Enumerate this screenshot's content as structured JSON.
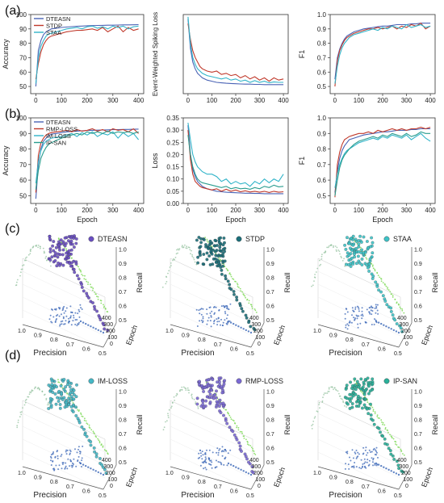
{
  "panel_labels": [
    "(a)",
    "(b)",
    "(c)",
    "(d)"
  ],
  "colors": {
    "DTEASN": "#4a63b5",
    "STDP": "#c0392b",
    "STAA": "#31b4c9",
    "RMP-LOSS": "#c0392b",
    "IM-LOSS": "#31b4c9",
    "IP-SAN": "#2a9d8f",
    "projection": "#7ed957",
    "scatter_DTEASN": "#6a4fc2",
    "scatter_STDP": "#1c6f7a",
    "scatter_STAA": "#3ec3c7",
    "scatter_IM-LOSS": "#45b8c6",
    "scatter_RMP-LOSS": "#7b6ad4",
    "scatter_IP-SAN": "#2ab09a",
    "scatter_floor": "#3a66b7",
    "scatter_wall": "#8fbf9a"
  },
  "chart_data": [
    {
      "id": "a1",
      "type": "line",
      "xlabel": "",
      "ylabel": "Accuracy",
      "xlim": [
        -20,
        420
      ],
      "ylim": [
        45,
        100
      ],
      "xticks": [
        "0",
        "100",
        "200",
        "300",
        "400"
      ],
      "yticks": [
        "50",
        "60",
        "70",
        "80",
        "90",
        "100"
      ],
      "legend": "top-left",
      "x": [
        0,
        10,
        20,
        30,
        40,
        50,
        60,
        80,
        100,
        120,
        140,
        160,
        180,
        200,
        220,
        240,
        260,
        280,
        300,
        320,
        340,
        360,
        380,
        400
      ],
      "series": [
        {
          "name": "DTEASN",
          "values": [
            50,
            75,
            82,
            86,
            88,
            89,
            90,
            90.5,
            91,
            91.3,
            91.6,
            91.8,
            92,
            92.2,
            92.3,
            92.4,
            92.5,
            92.6,
            92.6,
            92.7,
            92.8,
            92.8,
            92.9,
            93
          ]
        },
        {
          "name": "STDP",
          "values": [
            55,
            66,
            74,
            79,
            82,
            84,
            85,
            86,
            87,
            88,
            88.5,
            89,
            89,
            89.5,
            90,
            89,
            91,
            88,
            90,
            92,
            88,
            91,
            89,
            90
          ]
        },
        {
          "name": "STAA",
          "values": [
            52,
            70,
            78,
            82,
            85,
            86.5,
            87,
            88,
            89,
            90,
            90.5,
            91,
            90,
            91.5,
            92,
            90.5,
            91.5,
            90,
            92,
            91,
            92,
            90,
            91.5,
            92
          ]
        }
      ]
    },
    {
      "id": "a2",
      "type": "line",
      "xlabel": "",
      "ylabel": "Event-Weighted Spiking Loss",
      "xlim": [
        -20,
        420
      ],
      "ylim": [
        0,
        0.35
      ],
      "xticks": [
        "0",
        "100",
        "200",
        "300",
        "400"
      ],
      "yticks": [],
      "legend": "none",
      "x": [
        0,
        10,
        20,
        30,
        40,
        50,
        60,
        80,
        100,
        120,
        140,
        160,
        180,
        200,
        220,
        240,
        260,
        280,
        300,
        320,
        340,
        360,
        380,
        400
      ],
      "series": [
        {
          "name": "DTEASN",
          "values": [
            0.33,
            0.2,
            0.14,
            0.11,
            0.09,
            0.08,
            0.07,
            0.06,
            0.055,
            0.05,
            0.048,
            0.046,
            0.045,
            0.044,
            0.043,
            0.042,
            0.042,
            0.041,
            0.041,
            0.04,
            0.04,
            0.04,
            0.04,
            0.04
          ]
        },
        {
          "name": "STDP",
          "values": [
            0.31,
            0.24,
            0.19,
            0.16,
            0.14,
            0.12,
            0.11,
            0.1,
            0.095,
            0.1,
            0.085,
            0.09,
            0.08,
            0.085,
            0.07,
            0.08,
            0.065,
            0.075,
            0.06,
            0.07,
            0.055,
            0.07,
            0.06,
            0.065
          ]
        },
        {
          "name": "STAA",
          "values": [
            0.34,
            0.22,
            0.16,
            0.13,
            0.11,
            0.1,
            0.09,
            0.08,
            0.075,
            0.07,
            0.065,
            0.07,
            0.06,
            0.065,
            0.055,
            0.06,
            0.05,
            0.058,
            0.05,
            0.055,
            0.048,
            0.052,
            0.05,
            0.05
          ]
        }
      ]
    },
    {
      "id": "a3",
      "type": "line",
      "xlabel": "",
      "ylabel": "F1",
      "xlim": [
        -20,
        420
      ],
      "ylim": [
        0.45,
        1.0
      ],
      "xticks": [
        "0",
        "100",
        "200",
        "300",
        "400"
      ],
      "yticks": [
        "0.5",
        "0.6",
        "0.7",
        "0.8",
        "0.9",
        "1.0"
      ],
      "legend": "none",
      "x": [
        0,
        10,
        20,
        30,
        40,
        50,
        60,
        80,
        100,
        120,
        140,
        160,
        180,
        200,
        220,
        240,
        260,
        280,
        300,
        320,
        340,
        360,
        380,
        400
      ],
      "series": [
        {
          "name": "DTEASN",
          "values": [
            0.55,
            0.7,
            0.76,
            0.8,
            0.83,
            0.85,
            0.86,
            0.88,
            0.89,
            0.9,
            0.905,
            0.91,
            0.915,
            0.92,
            0.92,
            0.925,
            0.93,
            0.93,
            0.93,
            0.935,
            0.935,
            0.94,
            0.94,
            0.94
          ]
        },
        {
          "name": "STDP",
          "values": [
            0.5,
            0.68,
            0.75,
            0.79,
            0.82,
            0.84,
            0.85,
            0.87,
            0.88,
            0.89,
            0.9,
            0.9,
            0.91,
            0.9,
            0.91,
            0.92,
            0.9,
            0.92,
            0.91,
            0.93,
            0.92,
            0.94,
            0.9,
            0.92
          ]
        },
        {
          "name": "STAA",
          "values": [
            0.52,
            0.64,
            0.72,
            0.77,
            0.8,
            0.82,
            0.84,
            0.86,
            0.87,
            0.88,
            0.89,
            0.9,
            0.89,
            0.91,
            0.9,
            0.92,
            0.91,
            0.9,
            0.93,
            0.91,
            0.92,
            0.93,
            0.91,
            0.92
          ]
        }
      ]
    },
    {
      "id": "b1",
      "type": "line",
      "xlabel": "Epoch",
      "ylabel": "Accuracy",
      "xlim": [
        -20,
        420
      ],
      "ylim": [
        45,
        100
      ],
      "xticks": [
        "0",
        "100",
        "200",
        "300",
        "400"
      ],
      "yticks": [
        "50",
        "60",
        "70",
        "80",
        "90",
        "100"
      ],
      "legend": "top-left",
      "x": [
        0,
        10,
        20,
        30,
        40,
        50,
        60,
        80,
        100,
        120,
        140,
        160,
        180,
        200,
        220,
        240,
        260,
        280,
        300,
        320,
        340,
        360,
        380,
        400
      ],
      "series": [
        {
          "name": "DTEASN",
          "values": [
            48,
            70,
            80,
            85,
            87,
            88.5,
            89.5,
            90,
            90.5,
            91,
            91.3,
            91.5,
            91.7,
            91.9,
            92,
            92.1,
            92.2,
            92.3,
            92.4,
            92.5,
            92.6,
            92.6,
            92.7,
            92.8
          ]
        },
        {
          "name": "RMP-LOSS",
          "values": [
            52,
            76,
            84,
            87,
            89,
            90,
            90.5,
            91,
            91.5,
            92,
            91,
            92.5,
            91.5,
            92,
            93,
            91.5,
            92.5,
            91,
            93,
            92,
            92.5,
            91,
            93,
            90
          ]
        },
        {
          "name": "IM-LOSS",
          "values": [
            58,
            72,
            79,
            83,
            85,
            86,
            87,
            87.5,
            88,
            89,
            90,
            88,
            90.5,
            89,
            91,
            88,
            90,
            89,
            91,
            87,
            90.5,
            88,
            90,
            86
          ]
        },
        {
          "name": "IP-SAN",
          "values": [
            54,
            66,
            74,
            78,
            81,
            83,
            84,
            85.5,
            87,
            88,
            89,
            90,
            89,
            91,
            90,
            91,
            90,
            91.5,
            90,
            91,
            90.5,
            91,
            90,
            91
          ]
        }
      ]
    },
    {
      "id": "b2",
      "type": "line",
      "xlabel": "Epoch",
      "ylabel": "Loss",
      "xlim": [
        -20,
        420
      ],
      "ylim": [
        0,
        0.35
      ],
      "xticks": [
        "0",
        "100",
        "200",
        "300",
        "400"
      ],
      "yticks": [
        "0.00",
        "0.05",
        "0.10",
        "0.15",
        "0.20",
        "0.25",
        "0.30",
        "0.35"
      ],
      "legend": "none",
      "x": [
        0,
        10,
        20,
        30,
        40,
        50,
        60,
        80,
        100,
        120,
        140,
        160,
        180,
        200,
        220,
        240,
        260,
        280,
        300,
        320,
        340,
        360,
        380,
        400
      ],
      "series": [
        {
          "name": "DTEASN",
          "values": [
            0.32,
            0.2,
            0.14,
            0.11,
            0.09,
            0.08,
            0.07,
            0.06,
            0.055,
            0.05,
            0.048,
            0.046,
            0.045,
            0.044,
            0.043,
            0.042,
            0.042,
            0.041,
            0.041,
            0.04,
            0.04,
            0.04,
            0.04,
            0.04
          ]
        },
        {
          "name": "RMP-LOSS",
          "values": [
            0.3,
            0.18,
            0.12,
            0.09,
            0.08,
            0.07,
            0.065,
            0.06,
            0.055,
            0.06,
            0.05,
            0.058,
            0.05,
            0.055,
            0.048,
            0.052,
            0.047,
            0.05,
            0.046,
            0.05,
            0.045,
            0.05,
            0.046,
            0.048
          ]
        },
        {
          "name": "IM-LOSS",
          "values": [
            0.33,
            0.26,
            0.2,
            0.17,
            0.15,
            0.14,
            0.13,
            0.12,
            0.12,
            0.11,
            0.09,
            0.1,
            0.08,
            0.09,
            0.08,
            0.085,
            0.07,
            0.09,
            0.08,
            0.1,
            0.085,
            0.1,
            0.09,
            0.12
          ]
        },
        {
          "name": "IP-SAN",
          "values": [
            0.28,
            0.2,
            0.15,
            0.12,
            0.1,
            0.09,
            0.085,
            0.08,
            0.075,
            0.07,
            0.065,
            0.07,
            0.06,
            0.065,
            0.06,
            0.062,
            0.058,
            0.065,
            0.06,
            0.07,
            0.065,
            0.075,
            0.068,
            0.07
          ]
        }
      ]
    },
    {
      "id": "b3",
      "type": "line",
      "xlabel": "Epoch",
      "ylabel": "F1",
      "xlim": [
        -20,
        420
      ],
      "ylim": [
        0.45,
        1.0
      ],
      "xticks": [
        "0",
        "100",
        "200",
        "300",
        "400"
      ],
      "yticks": [
        "0.5",
        "0.6",
        "0.7",
        "0.8",
        "0.9",
        "1.0"
      ],
      "legend": "none",
      "x": [
        0,
        10,
        20,
        30,
        40,
        50,
        60,
        80,
        100,
        120,
        140,
        160,
        180,
        200,
        220,
        240,
        260,
        280,
        300,
        320,
        340,
        360,
        380,
        400
      ],
      "series": [
        {
          "name": "DTEASN",
          "values": [
            0.52,
            0.66,
            0.74,
            0.79,
            0.82,
            0.84,
            0.86,
            0.87,
            0.88,
            0.89,
            0.895,
            0.9,
            0.905,
            0.91,
            0.91,
            0.915,
            0.92,
            0.92,
            0.92,
            0.925,
            0.925,
            0.93,
            0.93,
            0.93
          ]
        },
        {
          "name": "RMP-LOSS",
          "values": [
            0.49,
            0.7,
            0.78,
            0.83,
            0.86,
            0.87,
            0.88,
            0.89,
            0.9,
            0.9,
            0.91,
            0.9,
            0.92,
            0.91,
            0.92,
            0.93,
            0.92,
            0.93,
            0.92,
            0.93,
            0.93,
            0.94,
            0.93,
            0.94
          ]
        },
        {
          "name": "IM-LOSS",
          "values": [
            0.55,
            0.64,
            0.7,
            0.74,
            0.77,
            0.79,
            0.8,
            0.82,
            0.84,
            0.85,
            0.86,
            0.87,
            0.86,
            0.88,
            0.87,
            0.89,
            0.88,
            0.87,
            0.89,
            0.86,
            0.88,
            0.9,
            0.87,
            0.85
          ]
        },
        {
          "name": "IP-SAN",
          "values": [
            0.5,
            0.6,
            0.68,
            0.73,
            0.76,
            0.78,
            0.8,
            0.83,
            0.85,
            0.86,
            0.87,
            0.88,
            0.87,
            0.89,
            0.88,
            0.9,
            0.89,
            0.88,
            0.9,
            0.88,
            0.89,
            0.91,
            0.9,
            0.9
          ]
        }
      ]
    },
    {
      "id": "c1",
      "type": "scatter",
      "name": "DTEASN",
      "xlabel": "Precision",
      "ylabel": "Epoch",
      "zlabel": "Recall",
      "xticks": [
        "1.0",
        "0.9",
        "0.8",
        "0.7",
        "0.6",
        "0.5"
      ],
      "yticks": [
        "0",
        "100",
        "200",
        "300",
        "400"
      ],
      "zticks": [
        "0.5",
        "0.6",
        "0.7",
        "0.8",
        "0.9",
        "1.0"
      ]
    },
    {
      "id": "c2",
      "type": "scatter",
      "name": "STDP",
      "xlabel": "Precision",
      "ylabel": "Epoch",
      "zlabel": "Recall",
      "xticks": [
        "1.0",
        "0.9",
        "0.8",
        "0.7",
        "0.6",
        "0.5"
      ],
      "yticks": [
        "0",
        "100",
        "200",
        "300",
        "400"
      ],
      "zticks": [
        "0.5",
        "0.6",
        "0.7",
        "0.8",
        "0.9",
        "1.0"
      ]
    },
    {
      "id": "c3",
      "type": "scatter",
      "name": "STAA",
      "xlabel": "Precision",
      "ylabel": "Epoch",
      "zlabel": "Recall",
      "xticks": [
        "1.0",
        "0.9",
        "0.8",
        "0.7",
        "0.6",
        "0.5"
      ],
      "yticks": [
        "0",
        "100",
        "200",
        "300",
        "400"
      ],
      "zticks": [
        "0.5",
        "0.6",
        "0.7",
        "0.8",
        "0.9",
        "1.0"
      ]
    },
    {
      "id": "d1",
      "type": "scatter",
      "name": "IM-LOSS",
      "xlabel": "Precision",
      "ylabel": "Epoch",
      "zlabel": "Recall",
      "xticks": [
        "1.0",
        "0.9",
        "0.8",
        "0.7",
        "0.6",
        "0.5"
      ],
      "yticks": [
        "0",
        "100",
        "200",
        "300",
        "400"
      ],
      "zticks": [
        "0.5",
        "0.6",
        "0.7",
        "0.8",
        "0.9",
        "1.0"
      ]
    },
    {
      "id": "d2",
      "type": "scatter",
      "name": "RMP-LOSS",
      "xlabel": "Precision",
      "ylabel": "Epoch",
      "zlabel": "Recall",
      "xticks": [
        "1.0",
        "0.9",
        "0.8",
        "0.7",
        "0.6",
        "0.5"
      ],
      "yticks": [
        "0",
        "100",
        "200",
        "300",
        "400"
      ],
      "zticks": [
        "0.5",
        "0.6",
        "0.7",
        "0.8",
        "0.9",
        "1.0"
      ]
    },
    {
      "id": "d3",
      "type": "scatter",
      "name": "IP-SAN",
      "xlabel": "Precision",
      "ylabel": "Epoch",
      "zlabel": "Recall",
      "xticks": [
        "1.0",
        "0.9",
        "0.8",
        "0.7",
        "0.6",
        "0.5"
      ],
      "yticks": [
        "0",
        "100",
        "200",
        "300",
        "400"
      ],
      "zticks": [
        "0.5",
        "0.6",
        "0.7",
        "0.8",
        "0.9",
        "1.0"
      ]
    }
  ]
}
